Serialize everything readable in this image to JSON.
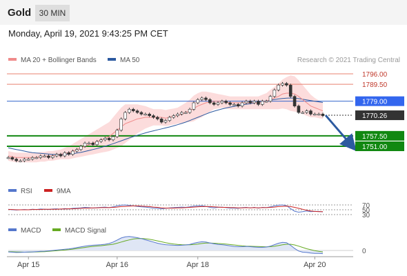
{
  "header": {
    "title": "Gold",
    "timeframe": "30 MIN"
  },
  "datetime": "Monday, April 19, 2021 9:43:25 PM CET",
  "chart_data": {
    "type": "line",
    "main": {
      "legend": [
        {
          "name": "MA 20 + Bollinger Bands",
          "color": "#f08b8b"
        },
        {
          "name": "MA 50",
          "color": "#2c5aa0"
        }
      ],
      "credit": "Research © 2021 Trading Central",
      "ylim": [
        1735,
        1802
      ],
      "levels": [
        {
          "value": 1796.0,
          "label": "1796.00",
          "color": "#e8806f",
          "kind": "resistance"
        },
        {
          "value": 1789.5,
          "label": "1789.50",
          "color": "#e8806f",
          "kind": "resistance"
        },
        {
          "value": 1779.0,
          "label": "1779.00",
          "color": "#3366cc",
          "kind": "pivot"
        },
        {
          "value": 1770.26,
          "label": "1770.26",
          "color": "#333333",
          "kind": "last"
        },
        {
          "value": 1757.5,
          "label": "1757.50",
          "color": "#118811",
          "kind": "support"
        },
        {
          "value": 1751.0,
          "label": "1751.00",
          "color": "#118811",
          "kind": "support"
        }
      ],
      "price": [
        1744,
        1743,
        1742,
        1742,
        1743,
        1743,
        1744,
        1744,
        1745,
        1745,
        1744,
        1745,
        1746,
        1745,
        1747,
        1746,
        1748,
        1749,
        1751,
        1753,
        1753,
        1752,
        1754,
        1755,
        1756,
        1755,
        1757,
        1761,
        1768,
        1772,
        1774,
        1773,
        1772,
        1771,
        1771,
        1770,
        1769,
        1768,
        1766,
        1767,
        1769,
        1770,
        1771,
        1772,
        1772,
        1774,
        1778,
        1780,
        1781,
        1780,
        1778,
        1777,
        1778,
        1779,
        1778,
        1777,
        1777,
        1776,
        1778,
        1779,
        1778,
        1779,
        1777,
        1779,
        1779,
        1782,
        1786,
        1789,
        1790,
        1789,
        1782,
        1776,
        1772,
        1772,
        1773,
        1771,
        1771,
        1771,
        1770
      ],
      "ma20": [
        1745,
        1744.5,
        1744,
        1744,
        1744,
        1744,
        1744,
        1744,
        1744.5,
        1744.5,
        1745,
        1745,
        1745.5,
        1746,
        1746.5,
        1747,
        1748,
        1749,
        1750,
        1751,
        1752,
        1753,
        1754,
        1755,
        1756,
        1757,
        1759,
        1761,
        1763,
        1765,
        1766,
        1767,
        1768,
        1768.5,
        1769,
        1769,
        1769,
        1769,
        1769,
        1768.5,
        1769,
        1769.5,
        1770,
        1771,
        1772,
        1773,
        1774.5,
        1776,
        1777,
        1778,
        1778.5,
        1779,
        1779,
        1779,
        1778.5,
        1778,
        1778,
        1778,
        1778,
        1778,
        1778,
        1778,
        1778,
        1778.5,
        1779,
        1780,
        1781,
        1782,
        1783.5,
        1784,
        1784,
        1783.5,
        1782,
        1780,
        1778,
        1776,
        1775,
        1774,
        1773
      ],
      "ma50": [
        1750,
        1749.5,
        1749,
        1748.5,
        1748,
        1747.5,
        1747,
        1746.8,
        1746.6,
        1746.4,
        1746.2,
        1746,
        1746,
        1746,
        1746,
        1746.2,
        1746.4,
        1746.8,
        1747.2,
        1747.8,
        1748.4,
        1749,
        1749.6,
        1750.3,
        1751,
        1751.8,
        1752.6,
        1753.5,
        1754.4,
        1755.3,
        1756.2,
        1757,
        1757.8,
        1758.6,
        1759.3,
        1760,
        1760.6,
        1761.2,
        1761.8,
        1762.4,
        1763,
        1763.7,
        1764.4,
        1765.2,
        1766,
        1767,
        1768,
        1769,
        1770,
        1771,
        1772,
        1772.8,
        1773.5,
        1774.2,
        1774.8,
        1775.3,
        1775.8,
        1776.3,
        1776.7,
        1777.1,
        1777.5,
        1777.9,
        1778.3,
        1778.7,
        1779.1,
        1779.6,
        1780,
        1780.4,
        1780.7,
        1780.9,
        1781,
        1780.9,
        1780.6,
        1780.2,
        1779.8,
        1779.4,
        1779,
        1778.6,
        1778.2
      ],
      "bb_width": [
        3,
        3,
        3,
        3,
        3,
        3,
        3,
        3,
        3,
        3,
        3,
        3,
        3,
        3,
        3.5,
        4,
        4.5,
        5,
        5.5,
        6,
        6.5,
        7,
        7.5,
        8,
        8.5,
        9,
        10,
        11,
        12,
        12,
        11,
        10,
        9,
        8,
        7,
        6,
        5,
        5,
        5,
        5,
        5,
        5,
        5,
        5.5,
        6,
        7,
        8,
        8,
        8,
        7,
        6,
        5,
        4.5,
        4,
        4,
        4,
        4,
        4,
        4,
        4,
        4,
        4,
        4,
        4.5,
        5,
        6,
        7,
        8,
        9,
        10,
        11,
        11,
        10,
        9,
        8,
        7,
        6,
        5.5,
        5
      ]
    },
    "forecast": [
      1770.26,
      1751.0
    ],
    "rsi": {
      "legend": [
        {
          "name": "RSI",
          "color": "#5577cc"
        },
        {
          "name": "9MA",
          "color": "#cc2222"
        }
      ],
      "ticks": [
        "70",
        "50",
        "30"
      ],
      "rsi": [
        52,
        50,
        49,
        50,
        51,
        50,
        52,
        51,
        53,
        52,
        51,
        53,
        54,
        52,
        55,
        53,
        56,
        57,
        58,
        60,
        59,
        57,
        59,
        60,
        61,
        59,
        62,
        66,
        69,
        70,
        68,
        66,
        64,
        62,
        61,
        59,
        57,
        56,
        54,
        56,
        58,
        59,
        60,
        61,
        60,
        62,
        65,
        66,
        67,
        64,
        60,
        58,
        60,
        61,
        59,
        57,
        57,
        56,
        59,
        60,
        58,
        60,
        57,
        60,
        59,
        62,
        66,
        69,
        70,
        67,
        55,
        44,
        40,
        42,
        45,
        42,
        43,
        43,
        41
      ],
      "ma9": [
        51,
        51,
        50,
        50,
        50,
        50,
        51,
        51,
        51,
        52,
        52,
        52,
        52,
        53,
        53,
        54,
        54,
        55,
        56,
        57,
        57,
        58,
        58,
        59,
        59,
        59,
        60,
        61,
        63,
        64,
        65,
        66,
        66,
        65,
        64,
        63,
        61,
        60,
        58,
        57,
        57,
        57,
        58,
        58,
        59,
        60,
        61,
        62,
        63,
        63,
        63,
        62,
        61,
        60,
        60,
        59,
        59,
        58,
        58,
        59,
        58,
        59,
        58,
        59,
        59,
        60,
        61,
        63,
        64,
        65,
        63,
        60,
        56,
        52,
        48,
        45,
        43,
        42,
        42
      ]
    },
    "macd": {
      "legend": [
        {
          "name": "MACD",
          "color": "#5577cc"
        },
        {
          "name": "MACD Signal",
          "color": "#66aa22"
        }
      ],
      "ticks": [
        "0"
      ],
      "macd": [
        -1,
        -1.2,
        -1.4,
        -1.3,
        -1.2,
        -1.1,
        -1,
        -0.8,
        -0.6,
        -0.5,
        -0.3,
        0,
        0.3,
        0.5,
        0.8,
        1.1,
        1.5,
        2,
        2.5,
        3,
        3.4,
        3.6,
        3.8,
        4,
        4.3,
        4.8,
        5.8,
        7.2,
        8.6,
        9.4,
        9.6,
        9.3,
        8.8,
        8.2,
        7.4,
        6.6,
        5.8,
        5,
        4.4,
        4,
        3.8,
        3.6,
        3.5,
        3.6,
        3.8,
        4.2,
        5,
        5.6,
        6,
        5.8,
        5.2,
        4.6,
        4.2,
        4,
        3.6,
        3.2,
        2.8,
        2.6,
        2.6,
        2.8,
        2.6,
        2.4,
        2.2,
        2.2,
        2.4,
        3,
        4,
        5,
        5.6,
        5.4,
        3.6,
        1.4,
        -0.4,
        -1.2,
        -1.4,
        -1.8,
        -2,
        -2,
        -2.2
      ],
      "signal": [
        -0.8,
        -0.9,
        -1,
        -1.1,
        -1.2,
        -1.2,
        -1.1,
        -1,
        -0.9,
        -0.8,
        -0.6,
        -0.4,
        -0.2,
        0.1,
        0.3,
        0.6,
        0.9,
        1.3,
        1.7,
        2.1,
        2.5,
        2.8,
        3.1,
        3.3,
        3.6,
        3.9,
        4.3,
        5,
        5.8,
        6.6,
        7.3,
        7.9,
        8.2,
        8.3,
        8.1,
        7.7,
        7.2,
        6.6,
        6,
        5.4,
        4.9,
        4.5,
        4.2,
        4,
        3.9,
        3.9,
        4.1,
        4.4,
        4.8,
        5.1,
        5.1,
        5,
        4.8,
        4.6,
        4.4,
        4.1,
        3.8,
        3.5,
        3.2,
        3,
        2.9,
        2.8,
        2.7,
        2.6,
        2.5,
        2.6,
        2.9,
        3.4,
        3.9,
        4.3,
        4.3,
        3.8,
        3,
        2.1,
        1.2,
        0.5,
        -0.1,
        -0.6,
        -1
      ]
    },
    "x_ticks": [
      {
        "label": "Apr 15",
        "index": 5
      },
      {
        "label": "Apr 16",
        "index": 27
      },
      {
        "label": "Apr 18",
        "index": 47
      },
      {
        "label": "Apr 20",
        "index": 76
      }
    ]
  }
}
